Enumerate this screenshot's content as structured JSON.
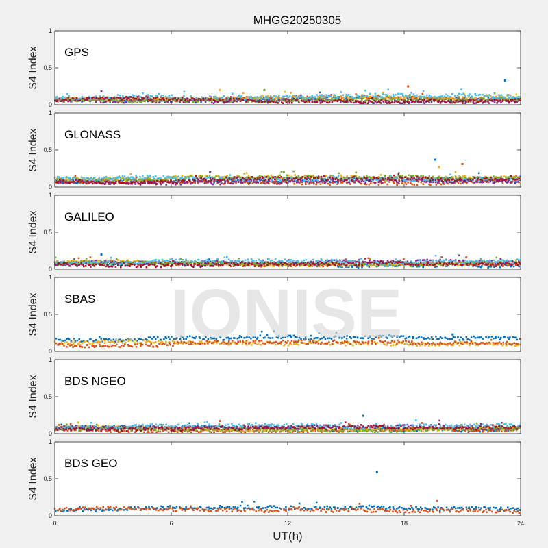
{
  "figure": {
    "title": "MHGG20250305",
    "xlabel": "UT(h)",
    "watermark": "IONISE"
  },
  "chart_data": [
    {
      "type": "scatter",
      "title": "GPS",
      "ylabel": "S4 Index",
      "xlim": [
        0,
        24
      ],
      "ylim": [
        0,
        1
      ],
      "xticks": [
        0,
        6,
        12,
        18,
        24
      ],
      "yticks": [
        0,
        0.5,
        1
      ],
      "series": [
        {
          "color": "#0072bd",
          "base": 0.06
        },
        {
          "color": "#d95319",
          "base": 0.07
        },
        {
          "color": "#edb120",
          "base": 0.08
        },
        {
          "color": "#7e2f8e",
          "base": 0.06
        },
        {
          "color": "#77ac30",
          "base": 0.08
        },
        {
          "color": "#4dbeee",
          "base": 0.09
        },
        {
          "color": "#a2142f",
          "base": 0.07
        }
      ],
      "spikes": [
        [
          23.2,
          0.33
        ],
        [
          18.2,
          0.25
        ],
        [
          8.5,
          0.2
        ],
        [
          2.4,
          0.18
        ],
        [
          10.8,
          0.2
        ]
      ]
    },
    {
      "type": "scatter",
      "title": "GLONASS",
      "ylabel": "S4 Index",
      "xlim": [
        0,
        24
      ],
      "ylim": [
        0,
        1
      ],
      "xticks": [
        0,
        6,
        12,
        18,
        24
      ],
      "yticks": [
        0,
        0.5,
        1
      ],
      "series": [
        {
          "color": "#0072bd",
          "base": 0.07
        },
        {
          "color": "#d95319",
          "base": 0.08
        },
        {
          "color": "#edb120",
          "base": 0.1
        },
        {
          "color": "#7e2f8e",
          "base": 0.07
        },
        {
          "color": "#77ac30",
          "base": 0.1
        },
        {
          "color": "#4dbeee",
          "base": 0.12
        },
        {
          "color": "#a2142f",
          "base": 0.08
        }
      ],
      "spikes": [
        [
          19.6,
          0.37
        ],
        [
          21.0,
          0.31
        ],
        [
          19.8,
          0.27
        ],
        [
          8.0,
          0.2
        ],
        [
          11.8,
          0.2
        ]
      ]
    },
    {
      "type": "scatter",
      "title": "GALILEO",
      "ylabel": "S4 Index",
      "xlim": [
        0,
        24
      ],
      "ylim": [
        0,
        1
      ],
      "xticks": [
        0,
        6,
        12,
        18,
        24
      ],
      "yticks": [
        0,
        0.5,
        1
      ],
      "series": [
        {
          "color": "#0072bd",
          "base": 0.07
        },
        {
          "color": "#d95319",
          "base": 0.08
        },
        {
          "color": "#edb120",
          "base": 0.09
        },
        {
          "color": "#7e2f8e",
          "base": 0.07
        },
        {
          "color": "#77ac30",
          "base": 0.09
        },
        {
          "color": "#4dbeee",
          "base": 0.08
        },
        {
          "color": "#a2142f",
          "base": 0.07
        }
      ],
      "spikes": [
        [
          2.4,
          0.2
        ],
        [
          21.2,
          0.16
        ]
      ]
    },
    {
      "type": "scatter",
      "title": "SBAS",
      "ylabel": "S4 Index",
      "xlim": [
        0,
        24
      ],
      "ylim": [
        0,
        1
      ],
      "xticks": [
        0,
        6,
        12,
        18,
        24
      ],
      "yticks": [
        0,
        0.5,
        1
      ],
      "series": [
        {
          "color": "#0072bd",
          "base": 0.16
        },
        {
          "color": "#edb120",
          "base": 0.12
        },
        {
          "color": "#d95319",
          "base": 0.09
        }
      ],
      "spikes": [
        [
          20.5,
          0.23
        ]
      ]
    },
    {
      "type": "scatter",
      "title": "BDS NGEO",
      "ylabel": "S4 Index",
      "xlim": [
        0,
        24
      ],
      "ylim": [
        0,
        1
      ],
      "xticks": [
        0,
        6,
        12,
        18,
        24
      ],
      "yticks": [
        0,
        0.5,
        1
      ],
      "series": [
        {
          "color": "#0072bd",
          "base": 0.07
        },
        {
          "color": "#d95319",
          "base": 0.06
        },
        {
          "color": "#edb120",
          "base": 0.08
        },
        {
          "color": "#7e2f8e",
          "base": 0.06
        },
        {
          "color": "#77ac30",
          "base": 0.07
        },
        {
          "color": "#4dbeee",
          "base": 0.08
        },
        {
          "color": "#a2142f",
          "base": 0.07
        }
      ],
      "spikes": [
        [
          15.9,
          0.24
        ],
        [
          8.5,
          0.17
        ],
        [
          1.2,
          0.15
        ]
      ]
    },
    {
      "type": "scatter",
      "title": "BDS GEO",
      "ylabel": "S4 Index",
      "xlim": [
        0,
        24
      ],
      "ylim": [
        0,
        1
      ],
      "xticks": [
        0,
        6,
        12,
        18,
        24
      ],
      "yticks": [
        0,
        0.5,
        1
      ],
      "series": [
        {
          "color": "#0072bd",
          "base": 0.08
        },
        {
          "color": "#d95319",
          "base": 0.08
        }
      ],
      "spikes": [
        [
          16.6,
          0.59
        ],
        [
          19.7,
          0.2
        ]
      ]
    }
  ]
}
